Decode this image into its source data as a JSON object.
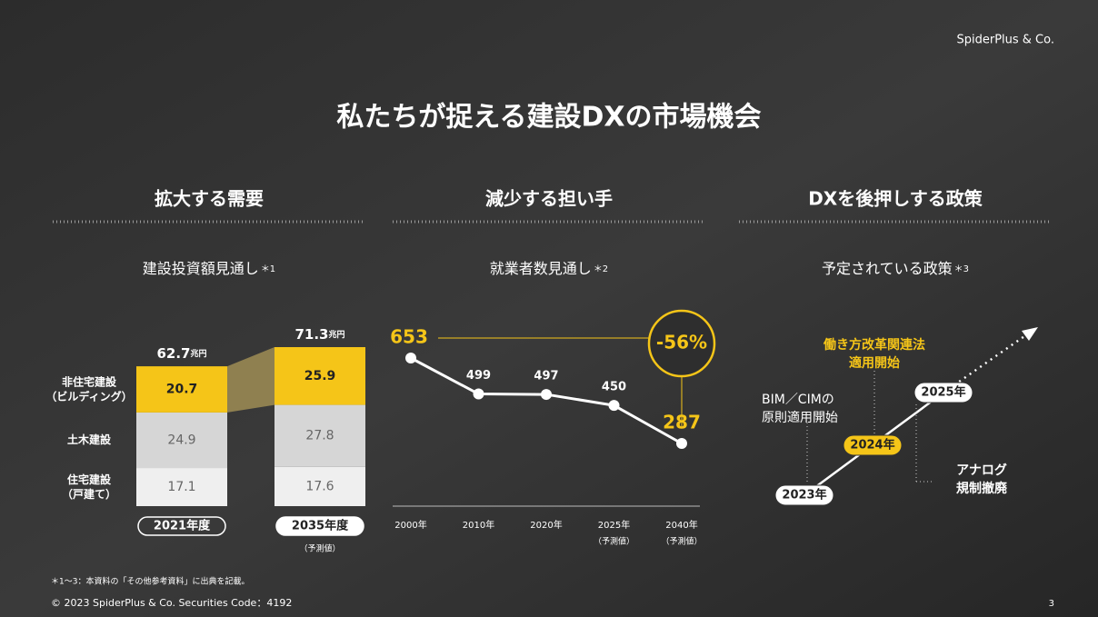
{
  "header": {
    "brand": "SpiderPlus & Co.",
    "title": "私たちが捉える建設DXの市場機会",
    "page": "3"
  },
  "sections": [
    {
      "heading": "拡大する需要",
      "subtitle": "建設投資額見通し",
      "note": "＊1"
    },
    {
      "heading": "減少する担い手",
      "subtitle": "就業者数見通し",
      "note": "＊2"
    },
    {
      "heading": "DXを後押しする政策",
      "subtitle": "予定されている政策",
      "note": "＊3"
    }
  ],
  "chart_data": [
    {
      "type": "bar",
      "stacked": true,
      "categories": [
        "2021年度",
        "2035年度"
      ],
      "category_notes": [
        null,
        "（予測値）"
      ],
      "series": [
        {
          "name": "住宅建設（戸建て）",
          "color": "#efefef",
          "values": [
            17.1,
            17.6
          ]
        },
        {
          "name": "土木建設",
          "color": "#d6d6d6",
          "values": [
            24.9,
            27.8
          ]
        },
        {
          "name": "非住宅建設（ビルディング）",
          "color": "#f5c518",
          "values": [
            20.7,
            25.9
          ]
        }
      ],
      "totals": [
        62.7,
        71.3
      ],
      "total_unit": "兆円"
    },
    {
      "type": "line",
      "categories": [
        "2000年",
        "2010年",
        "2020年",
        "2025年",
        "2040年"
      ],
      "category_notes": [
        null,
        null,
        null,
        "（予測値）",
        "（予測値）"
      ],
      "values": [
        653,
        499,
        497,
        450,
        287
      ],
      "color": "#ffffff",
      "highlight_color": "#f5c518",
      "annotation": "-56%"
    }
  ],
  "timeline": {
    "nodes": [
      {
        "label": "2023年",
        "text": [
          "BIM／CIMの",
          "原則適用開始"
        ]
      },
      {
        "label": "2024年",
        "text": [
          "働き方改革関連法",
          "適用開始"
        ]
      },
      {
        "label": "2025年",
        "text": [
          "アナログ",
          "規制撤廃"
        ]
      }
    ]
  },
  "footer": {
    "note": "＊1～3：本資料の「その他参考資料」に出典を記載。",
    "copyright": "© 2023 SpiderPlus & Co.  Securities Code：4192"
  }
}
